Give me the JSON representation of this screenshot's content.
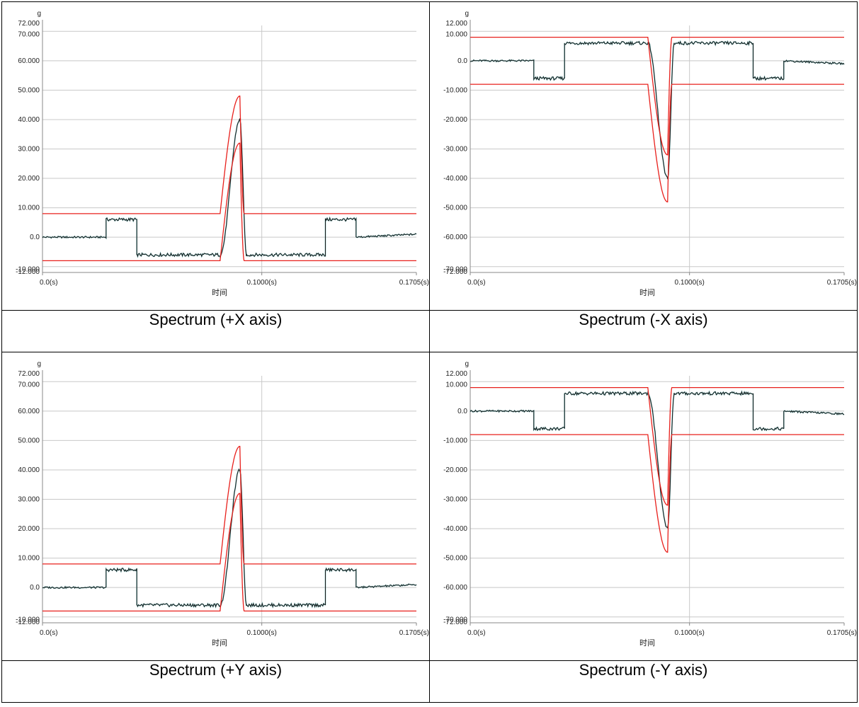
{
  "captions": [
    "Spectrum (+X axis)",
    "Spectrum (-X axis)",
    "Spectrum (+Y axis)",
    "Spectrum (-Y axis)"
  ],
  "chart_data": [
    {
      "type": "line",
      "unit": "g",
      "xlabel": "时间",
      "x_ticks": [
        "0.0(s)",
        "0.1000(s)",
        "0.1705(s)"
      ],
      "y_ticks": [
        "72.000",
        "70.000",
        "60.000",
        "50.000",
        "40.000",
        "30.000",
        "20.000",
        "10.000",
        "0.0",
        "-10.000",
        "-12.000"
      ],
      "ylim": [
        -12,
        72
      ],
      "xlim": [
        0,
        0.1705
      ],
      "grid": true,
      "colors": {
        "signal": "#1a1a1a",
        "tolerance": "#e8201c",
        "grid": "#c8c8c8"
      },
      "series": [
        {
          "values_x": [
            0,
            0.029,
            0.029,
            0.043,
            0.043,
            0.081,
            0.09,
            0.093,
            0.093,
            0.129,
            0.129,
            0.143,
            0.143,
            0.1705
          ],
          "values_y": [
            0,
            0,
            6,
            6,
            -6,
            -6,
            40,
            -6,
            -6,
            -6,
            6,
            6,
            0,
            1
          ]
        },
        {
          "values_x": [
            0,
            0.081,
            0.09,
            0.092,
            0.1705
          ],
          "values_y": [
            8,
            8,
            48,
            8,
            8
          ]
        },
        {
          "values_x": [
            0,
            0.081,
            0.09,
            0.092,
            0.1705
          ],
          "values_y": [
            -8,
            -8,
            32,
            -8,
            -8
          ]
        }
      ]
    },
    {
      "type": "line",
      "unit": "g",
      "xlabel": "时间",
      "x_ticks": [
        "0.0(s)",
        "0.1000(s)",
        "0.1705(s)"
      ],
      "y_ticks": [
        "12.000",
        "10.000",
        "0.0",
        "-10.000",
        "-20.000",
        "-30.000",
        "-40.000",
        "-50.000",
        "-60.000",
        "-70.000",
        "-72.000"
      ],
      "ylim": [
        -72,
        12
      ],
      "xlim": [
        0,
        0.1705
      ],
      "grid": true,
      "colors": {
        "signal": "#1a1a1a",
        "tolerance": "#e8201c",
        "grid": "#c8c8c8"
      },
      "series": [
        {
          "values_x": [
            0,
            0.029,
            0.029,
            0.043,
            0.043,
            0.081,
            0.09,
            0.093,
            0.093,
            0.129,
            0.129,
            0.143,
            0.143,
            0.1705
          ],
          "values_y": [
            0,
            0,
            -6,
            -6,
            6,
            6,
            -40,
            6,
            6,
            6,
            -6,
            -6,
            0,
            -1
          ]
        },
        {
          "values_x": [
            0,
            0.081,
            0.09,
            0.092,
            0.1705
          ],
          "values_y": [
            8,
            8,
            -32,
            8,
            8
          ]
        },
        {
          "values_x": [
            0,
            0.081,
            0.09,
            0.092,
            0.1705
          ],
          "values_y": [
            -8,
            -8,
            -48,
            -8,
            -8
          ]
        }
      ]
    },
    {
      "type": "line",
      "unit": "g",
      "xlabel": "时间",
      "x_ticks": [
        "0.0(s)",
        "0.1000(s)",
        "0.1705(s)"
      ],
      "y_ticks": [
        "72.000",
        "70.000",
        "60.000",
        "50.000",
        "40.000",
        "30.000",
        "20.000",
        "10.000",
        "0.0",
        "-10.000",
        "-12.000"
      ],
      "ylim": [
        -12,
        72
      ],
      "xlim": [
        0,
        0.1705
      ],
      "grid": true,
      "colors": {
        "signal": "#1a1a1a",
        "tolerance": "#e8201c",
        "grid": "#c8c8c8"
      },
      "series": [
        {
          "values_x": [
            0,
            0.029,
            0.029,
            0.043,
            0.043,
            0.081,
            0.09,
            0.093,
            0.093,
            0.129,
            0.129,
            0.143,
            0.143,
            0.1705
          ],
          "values_y": [
            0,
            0,
            6,
            6,
            -6,
            -6,
            40,
            -6,
            -6,
            -6,
            6,
            6,
            0,
            1
          ]
        },
        {
          "values_x": [
            0,
            0.081,
            0.09,
            0.092,
            0.1705
          ],
          "values_y": [
            8,
            8,
            48,
            8,
            8
          ]
        },
        {
          "values_x": [
            0,
            0.081,
            0.09,
            0.092,
            0.1705
          ],
          "values_y": [
            -8,
            -8,
            32,
            -8,
            -8
          ]
        }
      ]
    },
    {
      "type": "line",
      "unit": "g",
      "xlabel": "时间",
      "x_ticks": [
        "0.0(s)",
        "0.1000(s)",
        "0.1705(s)"
      ],
      "y_ticks": [
        "12.000",
        "10.000",
        "0.0",
        "-10.000",
        "-20.000",
        "-30.000",
        "-40.000",
        "-50.000",
        "-60.000",
        "-70.000",
        "-72.000"
      ],
      "ylim": [
        -72,
        12
      ],
      "xlim": [
        0,
        0.1705
      ],
      "grid": true,
      "colors": {
        "signal": "#1a1a1a",
        "tolerance": "#e8201c",
        "grid": "#c8c8c8"
      },
      "series": [
        {
          "values_x": [
            0,
            0.029,
            0.029,
            0.043,
            0.043,
            0.081,
            0.09,
            0.093,
            0.093,
            0.129,
            0.129,
            0.143,
            0.143,
            0.1705
          ],
          "values_y": [
            0,
            0,
            -6,
            -6,
            6,
            6,
            -40,
            6,
            6,
            6,
            -6,
            -6,
            0,
            -1
          ]
        },
        {
          "values_x": [
            0,
            0.081,
            0.09,
            0.092,
            0.1705
          ],
          "values_y": [
            8,
            8,
            -32,
            8,
            8
          ]
        },
        {
          "values_x": [
            0,
            0.081,
            0.09,
            0.092,
            0.1705
          ],
          "values_y": [
            -8,
            -8,
            -48,
            -8,
            -8
          ]
        }
      ]
    }
  ]
}
